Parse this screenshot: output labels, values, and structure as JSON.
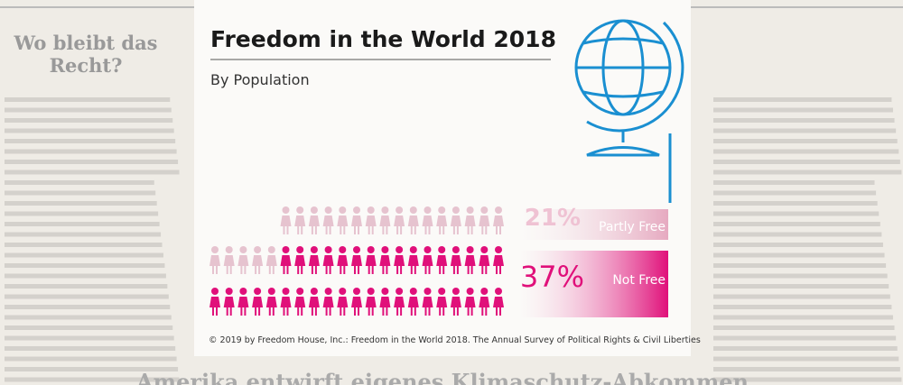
{
  "background": {
    "headline_left": [
      "Wo bleibt das",
      "Recht?"
    ],
    "headline_bottom": "Amerika entwirft eigenes Klimaschutz-Abkommen"
  },
  "chart_data": {
    "type": "pictogram",
    "title": "Freedom in the World 2018",
    "subtitle": "By Population",
    "categories": [
      "Partly Free",
      "Not Free"
    ],
    "values": [
      21,
      37
    ],
    "value_labels": [
      "21%",
      "37%"
    ],
    "colors": [
      "#e6c3cf",
      "#e0107a"
    ],
    "source": "© 2019 by Freedom House, Inc.: Freedom in the World 2018. The Annual Survey of Political Rights & Civil Liberties"
  }
}
